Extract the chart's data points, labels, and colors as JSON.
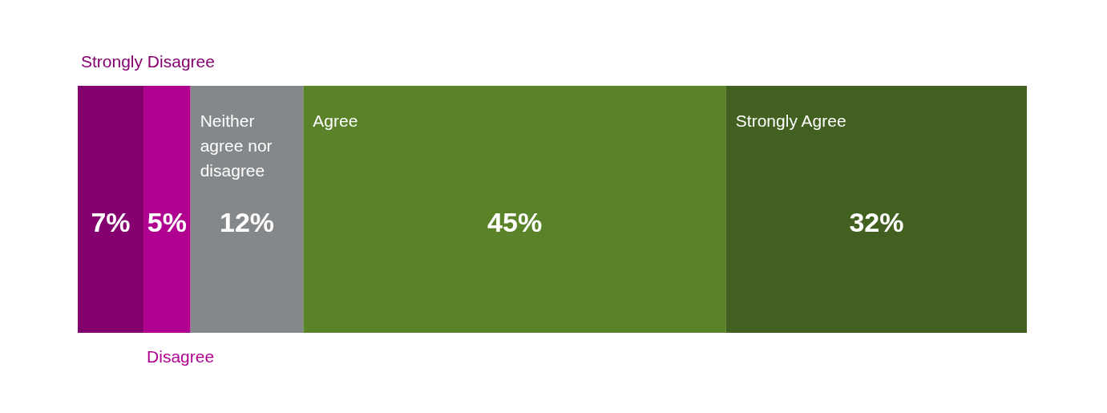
{
  "chart_data": {
    "type": "bar",
    "orientation": "horizontal",
    "stacked": true,
    "categories": [
      null
    ],
    "series": [
      {
        "name": "Strongly Disagree",
        "color": "#84006e",
        "values": [
          7
        ],
        "value_labels": [
          "7%"
        ]
      },
      {
        "name": "Disagree",
        "color": "#b0008f",
        "values": [
          5
        ],
        "value_labels": [
          "5%"
        ]
      },
      {
        "name": "Neither agree nor disagree",
        "color": "#85888a",
        "values": [
          12
        ],
        "value_labels": [
          "12%"
        ]
      },
      {
        "name": "Agree",
        "color": "#5a8228",
        "values": [
          45
        ],
        "value_labels": [
          "45%"
        ]
      },
      {
        "name": "Strongly Agree",
        "color": "#426020",
        "values": [
          32
        ],
        "value_labels": [
          "32%"
        ]
      }
    ]
  }
}
